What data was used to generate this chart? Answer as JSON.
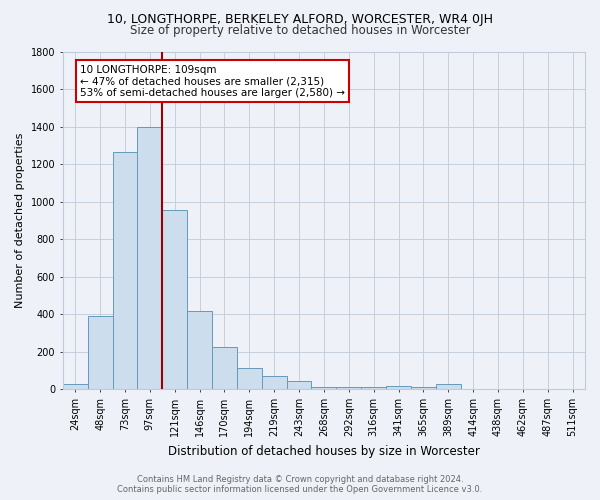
{
  "title": "10, LONGTHORPE, BERKELEY ALFORD, WORCESTER, WR4 0JH",
  "subtitle": "Size of property relative to detached houses in Worcester",
  "xlabel": "Distribution of detached houses by size in Worcester",
  "ylabel": "Number of detached properties",
  "footer_line1": "Contains HM Land Registry data © Crown copyright and database right 2024.",
  "footer_line2": "Contains public sector information licensed under the Open Government Licence v3.0.",
  "bin_labels": [
    "24sqm",
    "48sqm",
    "73sqm",
    "97sqm",
    "121sqm",
    "146sqm",
    "170sqm",
    "194sqm",
    "219sqm",
    "243sqm",
    "268sqm",
    "292sqm",
    "316sqm",
    "341sqm",
    "365sqm",
    "389sqm",
    "414sqm",
    "438sqm",
    "462sqm",
    "487sqm",
    "511sqm"
  ],
  "bar_values": [
    25,
    390,
    1265,
    1395,
    955,
    415,
    225,
    115,
    70,
    45,
    10,
    10,
    10,
    15,
    10,
    25,
    0,
    0,
    0,
    0,
    0
  ],
  "bar_color": "#ccdded",
  "bar_edgecolor": "#6699bb",
  "grid_color": "#c0cad8",
  "bg_color": "#eef2f8",
  "vline_color": "#990000",
  "vline_index": 4,
  "annotation_text": "10 LONGTHORPE: 109sqm\n← 47% of detached houses are smaller (2,315)\n53% of semi-detached houses are larger (2,580) →",
  "annotation_box_color": "#ffffff",
  "annotation_box_edgecolor": "#cc0000",
  "ylim": [
    0,
    1800
  ],
  "yticks": [
    0,
    200,
    400,
    600,
    800,
    1000,
    1200,
    1400,
    1600,
    1800
  ],
  "title_fontsize": 9,
  "subtitle_fontsize": 8.5,
  "ylabel_fontsize": 8,
  "xlabel_fontsize": 8.5,
  "tick_fontsize": 7,
  "footer_fontsize": 6,
  "annot_fontsize": 7.5
}
